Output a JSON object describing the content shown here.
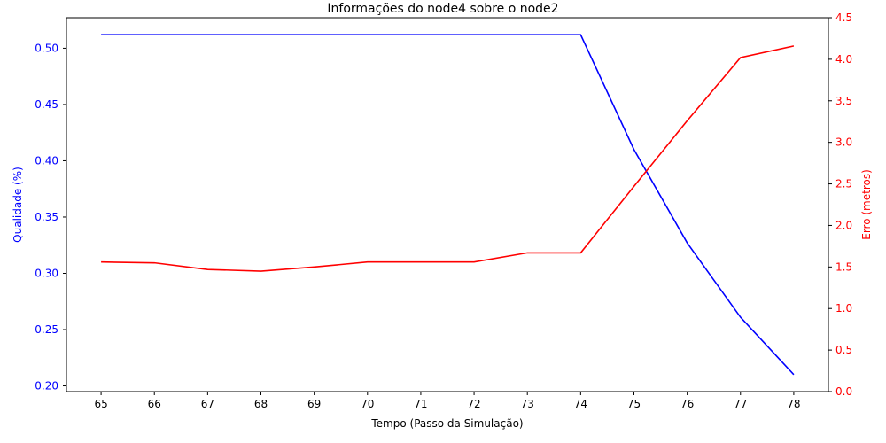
{
  "chart_data": {
    "type": "line",
    "title": "Informações do node4 sobre o node2",
    "xlabel": "Tempo (Passo da Simulação)",
    "x": [
      65,
      66,
      67,
      68,
      69,
      70,
      71,
      72,
      73,
      74,
      75,
      76,
      77,
      78
    ],
    "xlim": [
      64.35,
      78.65
    ],
    "x_ticks": [
      "65",
      "66",
      "67",
      "68",
      "69",
      "70",
      "71",
      "72",
      "73",
      "74",
      "75",
      "76",
      "77",
      "78"
    ],
    "series": [
      {
        "axis": "left",
        "color": "#0000ff",
        "values": [
          0.512,
          0.512,
          0.512,
          0.512,
          0.512,
          0.512,
          0.512,
          0.512,
          0.512,
          0.512,
          0.41,
          0.327,
          0.261,
          0.21
        ]
      },
      {
        "axis": "right",
        "color": "#ff0000",
        "values": [
          1.56,
          1.55,
          1.47,
          1.45,
          1.5,
          1.56,
          1.56,
          1.56,
          1.67,
          1.67,
          2.47,
          3.26,
          4.02,
          4.16
        ]
      }
    ],
    "y_left": {
      "label": "Qualidade (%)",
      "color": "#0000ff",
      "lim": [
        0.1949,
        0.5271
      ],
      "ticks": [
        "0.20",
        "0.25",
        "0.30",
        "0.35",
        "0.40",
        "0.45",
        "0.50"
      ]
    },
    "y_right": {
      "label": "Erro (metros)",
      "color": "#ff0000",
      "lim": [
        0.0,
        4.5
      ],
      "ticks": [
        "0.0",
        "0.5",
        "1.0",
        "1.5",
        "2.0",
        "2.5",
        "3.0",
        "3.5",
        "4.0",
        "4.5"
      ]
    },
    "grid": false,
    "legend": "none"
  }
}
